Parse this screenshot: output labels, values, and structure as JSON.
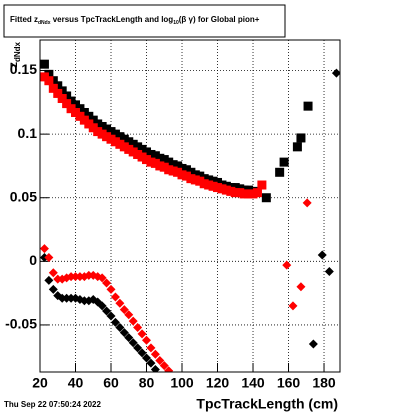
{
  "chart_data": {
    "type": "scatter",
    "title": [
      "Fitted  z",
      "dNdx",
      " versus TpcTrackLength and log",
      "10",
      "(β  γ) for Global pion+"
    ],
    "y_label": [
      "z",
      "dNdx"
    ],
    "x_label": "TpcTrackLength (cm)",
    "footer": "Thu Sep 22 07:50:24 2022",
    "xlim": [
      20,
      189
    ],
    "ylim": [
      -0.087,
      0.174
    ],
    "xticks": [
      20,
      40,
      60,
      80,
      100,
      120,
      140,
      160,
      180
    ],
    "yticks": [
      -0.05,
      0,
      0.05,
      0.1,
      0.15
    ],
    "grid": true,
    "series": [
      {
        "color": "#000000",
        "marker": "square",
        "x": [
          22.5,
          25,
          27.5,
          30,
          32.5,
          35,
          37.5,
          40,
          42.5,
          45,
          47.5,
          50,
          52.5,
          55,
          57.5,
          60,
          62.5,
          65,
          67.5,
          70,
          72.5,
          75,
          77.5,
          80,
          82.5,
          85,
          87.5,
          90,
          92.5,
          95,
          97.5,
          100,
          102.5,
          105,
          107.5,
          110,
          112.5,
          115,
          117.5,
          120,
          122.5,
          125,
          127.5,
          130,
          132.5,
          135,
          137.5,
          140,
          147.5,
          155,
          157.5,
          165,
          167,
          171
        ],
        "values": [
          0.155,
          0.147,
          0.142,
          0.138,
          0.134,
          0.13,
          0.126,
          0.123,
          0.12,
          0.117,
          0.114,
          0.111,
          0.108,
          0.106,
          0.104,
          0.102,
          0.1,
          0.098,
          0.096,
          0.094,
          0.092,
          0.09,
          0.088,
          0.086,
          0.084,
          0.083,
          0.081,
          0.08,
          0.078,
          0.076,
          0.075,
          0.073,
          0.072,
          0.07,
          0.068,
          0.067,
          0.065,
          0.064,
          0.063,
          0.062,
          0.06,
          0.059,
          0.058,
          0.058,
          0.057,
          0.056,
          0.056,
          0.055,
          0.05,
          0.07,
          0.078,
          0.09,
          0.097,
          0.122
        ]
      },
      {
        "color": "#ff0000",
        "marker": "square",
        "x": [
          22.5,
          25,
          27.5,
          30,
          32.5,
          35,
          37.5,
          40,
          42.5,
          45,
          47.5,
          50,
          52.5,
          55,
          57.5,
          60,
          62.5,
          65,
          67.5,
          70,
          72.5,
          75,
          77.5,
          80,
          82.5,
          85,
          87.5,
          90,
          92.5,
          95,
          97.5,
          100,
          102.5,
          105,
          107.5,
          110,
          112.5,
          115,
          117.5,
          120,
          122.5,
          125,
          127.5,
          130,
          132.5,
          135,
          137.5,
          140,
          142.5,
          145
        ],
        "values": [
          0.145,
          0.142,
          0.136,
          0.132,
          0.128,
          0.124,
          0.12,
          0.117,
          0.114,
          0.111,
          0.108,
          0.105,
          0.102,
          0.1,
          0.098,
          0.096,
          0.094,
          0.092,
          0.09,
          0.088,
          0.086,
          0.084,
          0.082,
          0.08,
          0.078,
          0.077,
          0.075,
          0.074,
          0.072,
          0.071,
          0.07,
          0.068,
          0.067,
          0.065,
          0.064,
          0.063,
          0.061,
          0.06,
          0.059,
          0.058,
          0.057,
          0.056,
          0.055,
          0.054,
          0.054,
          0.053,
          0.053,
          0.053,
          0.054,
          0.06
        ]
      },
      {
        "color": "#000000",
        "marker": "diamond",
        "x": [
          22.5,
          25,
          27.5,
          30,
          32.5,
          35,
          37.5,
          40,
          42.5,
          45,
          47.5,
          50,
          52.5,
          55,
          57.5,
          60,
          62.5,
          65,
          67.5,
          70,
          72.5,
          75,
          77.5,
          80,
          82.5,
          85,
          174,
          179,
          183,
          187
        ],
        "values": [
          0.003,
          -0.015,
          -0.022,
          -0.027,
          -0.029,
          -0.029,
          -0.029,
          -0.029,
          -0.03,
          -0.031,
          -0.031,
          -0.03,
          -0.032,
          -0.035,
          -0.039,
          -0.043,
          -0.048,
          -0.052,
          -0.056,
          -0.06,
          -0.064,
          -0.068,
          -0.072,
          -0.076,
          -0.08,
          -0.085,
          -0.065,
          0.005,
          -0.008,
          0.148
        ]
      },
      {
        "color": "#ff0000",
        "marker": "diamond",
        "x": [
          22.5,
          25,
          27.5,
          30,
          32.5,
          35,
          37.5,
          40,
          42.5,
          45,
          47.5,
          50,
          52.5,
          55,
          57.5,
          60,
          62.5,
          65,
          67.5,
          70,
          72.5,
          75,
          77.5,
          80,
          82.5,
          85,
          87.5,
          90,
          92.5,
          159,
          162.5,
          167,
          170.5
        ],
        "values": [
          0.01,
          0.003,
          -0.009,
          -0.014,
          -0.014,
          -0.013,
          -0.012,
          -0.012,
          -0.012,
          -0.012,
          -0.011,
          -0.011,
          -0.012,
          -0.013,
          -0.017,
          -0.022,
          -0.028,
          -0.033,
          -0.038,
          -0.042,
          -0.047,
          -0.052,
          -0.057,
          -0.062,
          -0.068,
          -0.073,
          -0.078,
          -0.082,
          -0.086,
          -0.003,
          -0.035,
          -0.02,
          0.046
        ]
      }
    ]
  }
}
